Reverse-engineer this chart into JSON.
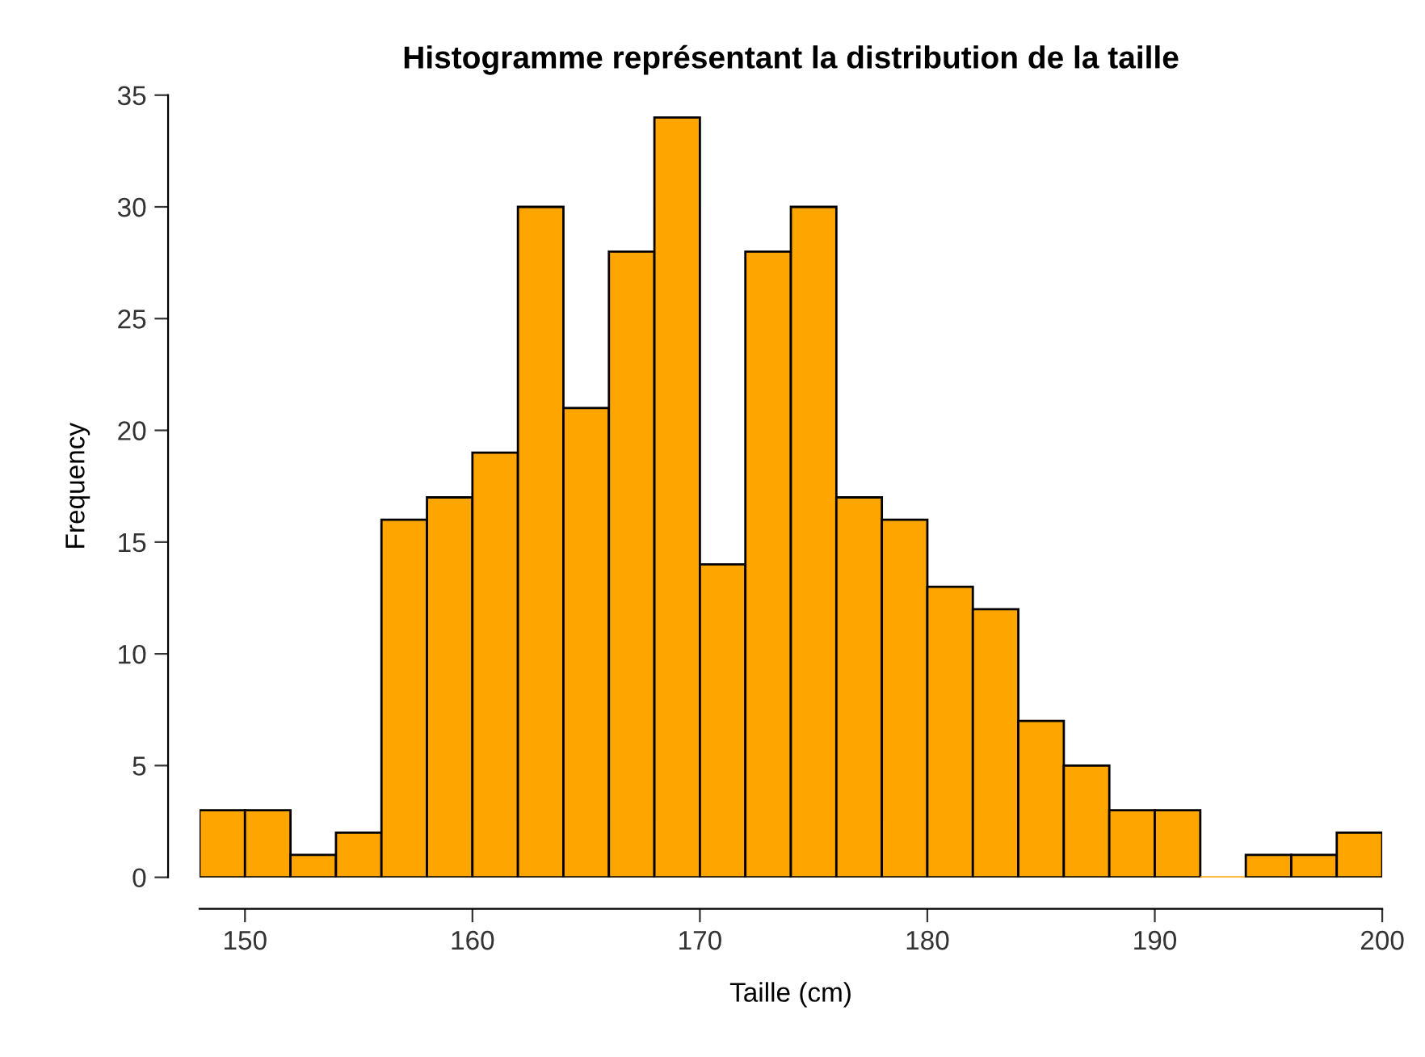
{
  "chart_data": {
    "type": "histogram",
    "title": "Histogramme représentant la distribution de la taille",
    "xlabel": "Taille (cm)",
    "ylabel": "Frequency",
    "bins": [
      148,
      150,
      152,
      154,
      156,
      158,
      160,
      162,
      164,
      166,
      168,
      170,
      172,
      174,
      176,
      178,
      180,
      182,
      184,
      186,
      188,
      190,
      192,
      194,
      196,
      198,
      200
    ],
    "values": [
      3,
      3,
      1,
      2,
      16,
      17,
      19,
      30,
      21,
      28,
      34,
      14,
      28,
      30,
      17,
      16,
      13,
      12,
      7,
      5,
      3,
      3,
      0,
      1,
      1,
      2
    ],
    "color": "#ffa500",
    "xlim": [
      148,
      200
    ],
    "ylim": [
      0,
      35
    ],
    "xticks": [
      150,
      160,
      170,
      180,
      190,
      200
    ],
    "yticks": [
      0,
      5,
      10,
      15,
      20,
      25,
      30,
      35
    ],
    "grid": false
  }
}
